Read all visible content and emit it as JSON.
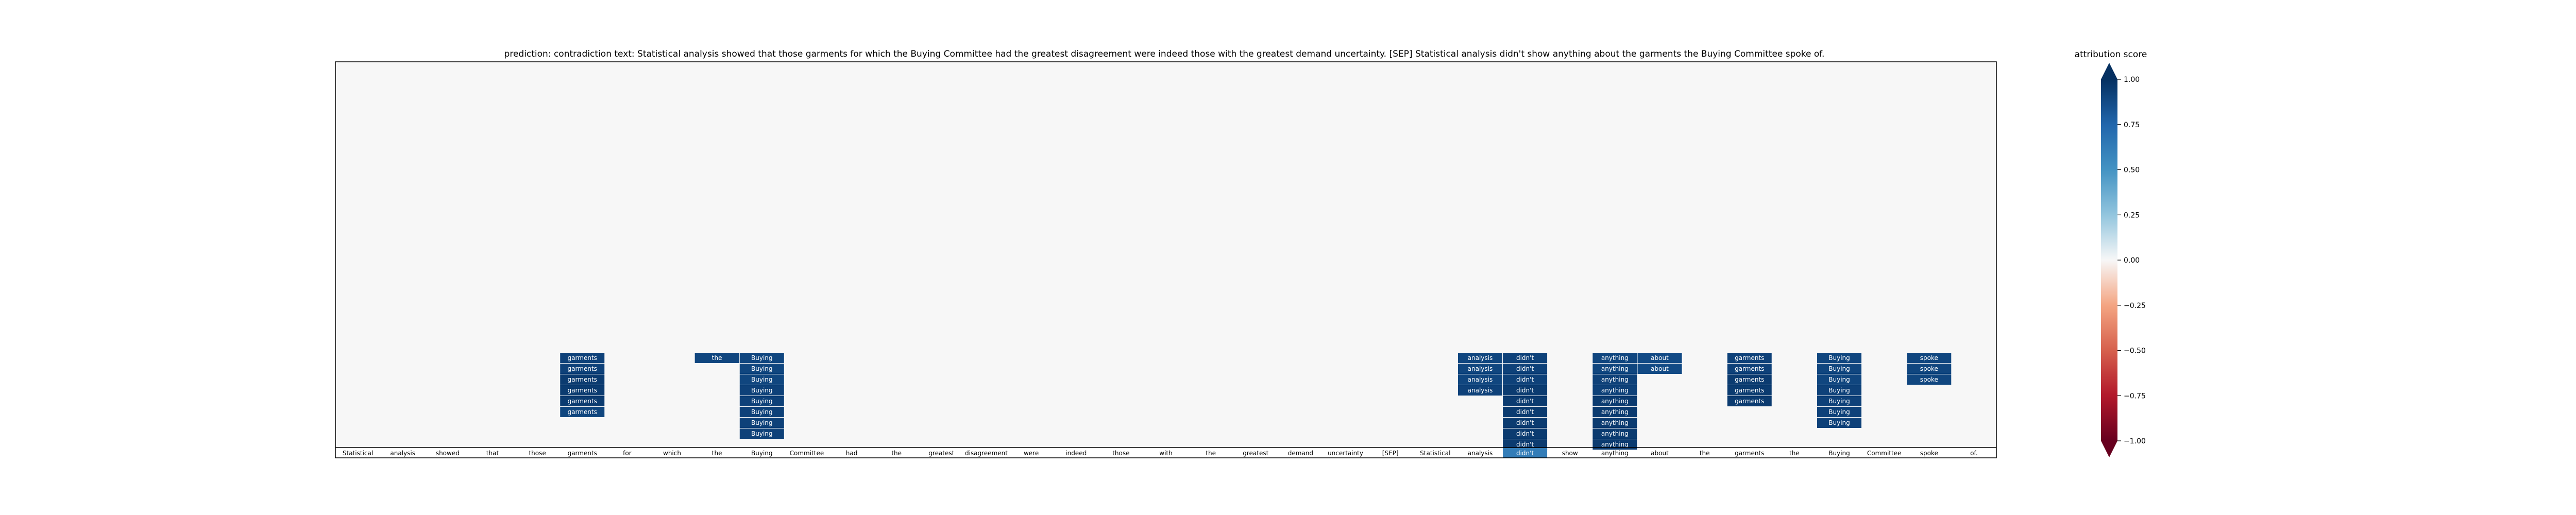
{
  "chart_data": {
    "type": "heatmap",
    "title": "prediction:  contradiction      text:  Statistical analysis showed that those garments for which the Buying Committee had the greatest disagreement were indeed those with the greatest demand uncertainty. [SEP] Statistical analysis didn't show anything about the garments the Buying Committee spoke of.",
    "tokens": [
      "Statistical",
      "analysis",
      "showed",
      "that",
      "those",
      "garments",
      "for",
      "which",
      "the",
      "Buying",
      "Committee",
      "had",
      "the",
      "greatest",
      "disagreement",
      "were",
      "indeed",
      "those",
      "with",
      "the",
      "greatest",
      "demand",
      "uncertainty",
      "[SEP]",
      "Statistical",
      "analysis",
      "didn't",
      "show",
      "anything",
      "about",
      "the",
      "garments",
      "the",
      "Buying",
      "Committee",
      "spoke",
      "of."
    ],
    "bottom_row_value": 0.62,
    "bottom_row_highlight_index": 26,
    "columns": [
      {
        "index": 5,
        "label": "garments",
        "values": [
          0.92,
          0.92,
          0.95,
          0.95,
          0.95,
          0.9
        ]
      },
      {
        "index": 8,
        "label": "the",
        "values": [
          0.9
        ]
      },
      {
        "index": 9,
        "label": "Buying",
        "values": [
          0.9,
          0.9,
          0.9,
          0.92,
          0.92,
          0.92,
          0.92,
          0.92
        ]
      },
      {
        "index": 25,
        "label": "analysis",
        "values": [
          0.9,
          0.9,
          0.9,
          0.92
        ]
      },
      {
        "index": 26,
        "label": "didn't",
        "values": [
          0.92,
          0.92,
          0.92,
          0.95,
          0.95,
          0.95,
          0.95,
          0.95,
          0.95
        ]
      },
      {
        "index": 28,
        "label": "anything",
        "values": [
          0.9,
          0.9,
          0.92,
          0.92,
          0.95,
          0.95,
          0.95,
          0.95,
          0.95
        ]
      },
      {
        "index": 29,
        "label": "about",
        "values": [
          0.88,
          0.88
        ]
      },
      {
        "index": 31,
        "label": "garments",
        "values": [
          0.92,
          0.92,
          0.95,
          0.95,
          0.95
        ]
      },
      {
        "index": 33,
        "label": "Buying",
        "values": [
          0.9,
          0.9,
          0.9,
          0.92,
          0.92,
          0.92,
          0.92
        ]
      },
      {
        "index": 35,
        "label": "spoke",
        "values": [
          0.9,
          0.9,
          0.9
        ]
      }
    ],
    "colorbar": {
      "label": "attribution score",
      "ticks": [
        "1.00",
        "0.75",
        "0.50",
        "0.25",
        "0.00",
        "−0.25",
        "−0.50",
        "−0.75",
        "−1.00"
      ],
      "vmin": -1,
      "vmax": 1,
      "colormap": "RdBu"
    }
  }
}
